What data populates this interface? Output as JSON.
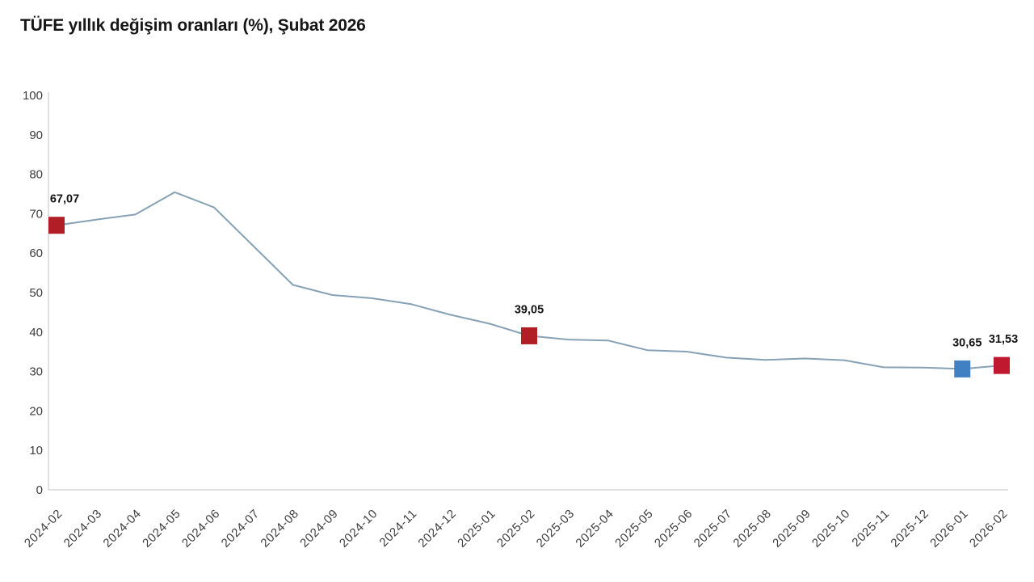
{
  "header": {
    "title": "TÜFE yıllık değişim oranları (%), Şubat 2026"
  },
  "chart_data": {
    "type": "line",
    "title": "TÜFE yıllık değişim oranları (%), Şubat 2026",
    "xlabel": "",
    "ylabel": "",
    "ylim": [
      0,
      100
    ],
    "yticks": [
      0,
      10,
      20,
      30,
      40,
      50,
      60,
      70,
      80,
      90,
      100
    ],
    "grid": false,
    "legend_position": "none",
    "categories": [
      "2024-02",
      "2024-03",
      "2024-04",
      "2024-05",
      "2024-06",
      "2024-07",
      "2024-08",
      "2024-09",
      "2024-10",
      "2024-11",
      "2024-12",
      "2025-01",
      "2025-02",
      "2025-03",
      "2025-04",
      "2025-05",
      "2025-06",
      "2025-07",
      "2025-08",
      "2025-09",
      "2025-10",
      "2025-11",
      "2025-12",
      "2026-01",
      "2026-02"
    ],
    "values": [
      67.07,
      68.5,
      69.8,
      75.45,
      71.6,
      61.78,
      51.97,
      49.38,
      48.58,
      47.09,
      44.38,
      42.12,
      39.05,
      38.1,
      37.86,
      35.41,
      35.05,
      33.52,
      32.95,
      33.29,
      32.87,
      31.07,
      31.0,
      30.65,
      31.53
    ],
    "annotated_points": [
      {
        "category": "2024-02",
        "value": 67.07,
        "label": "67,07",
        "marker_color": "#b21e26",
        "label_dx": 10
      },
      {
        "category": "2025-02",
        "value": 39.05,
        "label": "39,05",
        "marker_color": "#b21e26",
        "label_dx": 0
      },
      {
        "category": "2026-01",
        "value": 30.65,
        "label": "30,65",
        "marker_color": "#4181c3",
        "label_dx": 6
      },
      {
        "category": "2026-02",
        "value": 31.53,
        "label": "31,53",
        "marker_color": "#c0182e",
        "label_dx": 2
      }
    ],
    "colors": {
      "line": "#86a2b4",
      "axis": "#d6d6d6",
      "tick_label": "#3d3d3d",
      "value_label": "#141414",
      "highlight_red": "#b21e26",
      "highlight_blue": "#4181c3"
    }
  }
}
